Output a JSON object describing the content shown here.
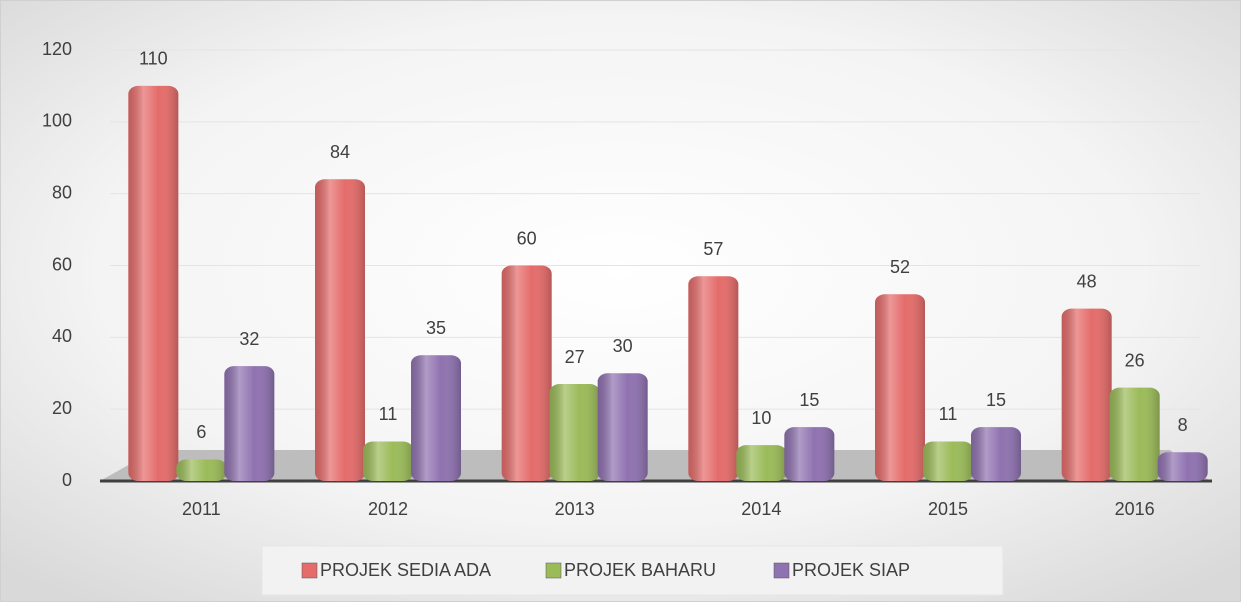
{
  "chart_data": {
    "type": "bar",
    "categories": [
      "2011",
      "2012",
      "2013",
      "2014",
      "2015",
      "2016"
    ],
    "series": [
      {
        "name": "PROJEK SEDIA ADA",
        "color": "#e46c6a",
        "values": [
          110,
          84,
          60,
          57,
          52,
          48
        ]
      },
      {
        "name": "PROJEK BAHARU",
        "color": "#9bbb59",
        "values": [
          6,
          11,
          27,
          10,
          11,
          26
        ]
      },
      {
        "name": "PROJEK SIAP",
        "color": "#8f72b0",
        "values": [
          32,
          35,
          30,
          15,
          15,
          8
        ]
      }
    ],
    "ylim": [
      0,
      120
    ],
    "yticks": [
      0,
      20,
      40,
      60,
      80,
      100,
      120
    ],
    "grid": true,
    "legend": "bottom"
  }
}
